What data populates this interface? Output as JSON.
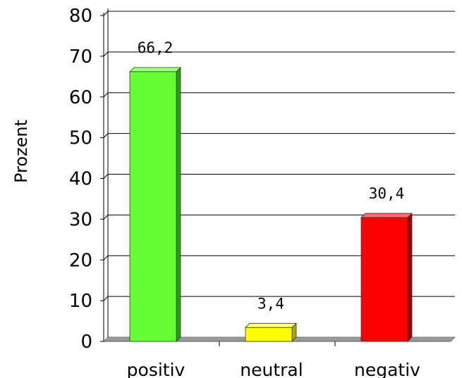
{
  "chart_data": {
    "type": "bar",
    "categories": [
      "positiv",
      "neutral",
      "negativ"
    ],
    "values": [
      66.2,
      3.4,
      30.4
    ],
    "value_labels": [
      "66,2",
      "3,4",
      "30,4"
    ],
    "title": "",
    "xlabel": "",
    "ylabel": "Prozent",
    "ylim": [
      0,
      80
    ],
    "yticks": [
      0,
      10,
      20,
      30,
      40,
      50,
      60,
      70,
      80
    ],
    "grid": true,
    "legend": "none",
    "bar_style": "3d",
    "colors": {
      "bars": [
        "#66ff33",
        "#ffff00",
        "#ff0000"
      ],
      "bar_tops": [
        "#9dff7a",
        "#ffff88",
        "#ff6b6b"
      ],
      "bar_sides": [
        "#2e9b12",
        "#a8a800",
        "#a00000"
      ],
      "gridline": "#000000",
      "floor": "#9a9a9a"
    }
  }
}
